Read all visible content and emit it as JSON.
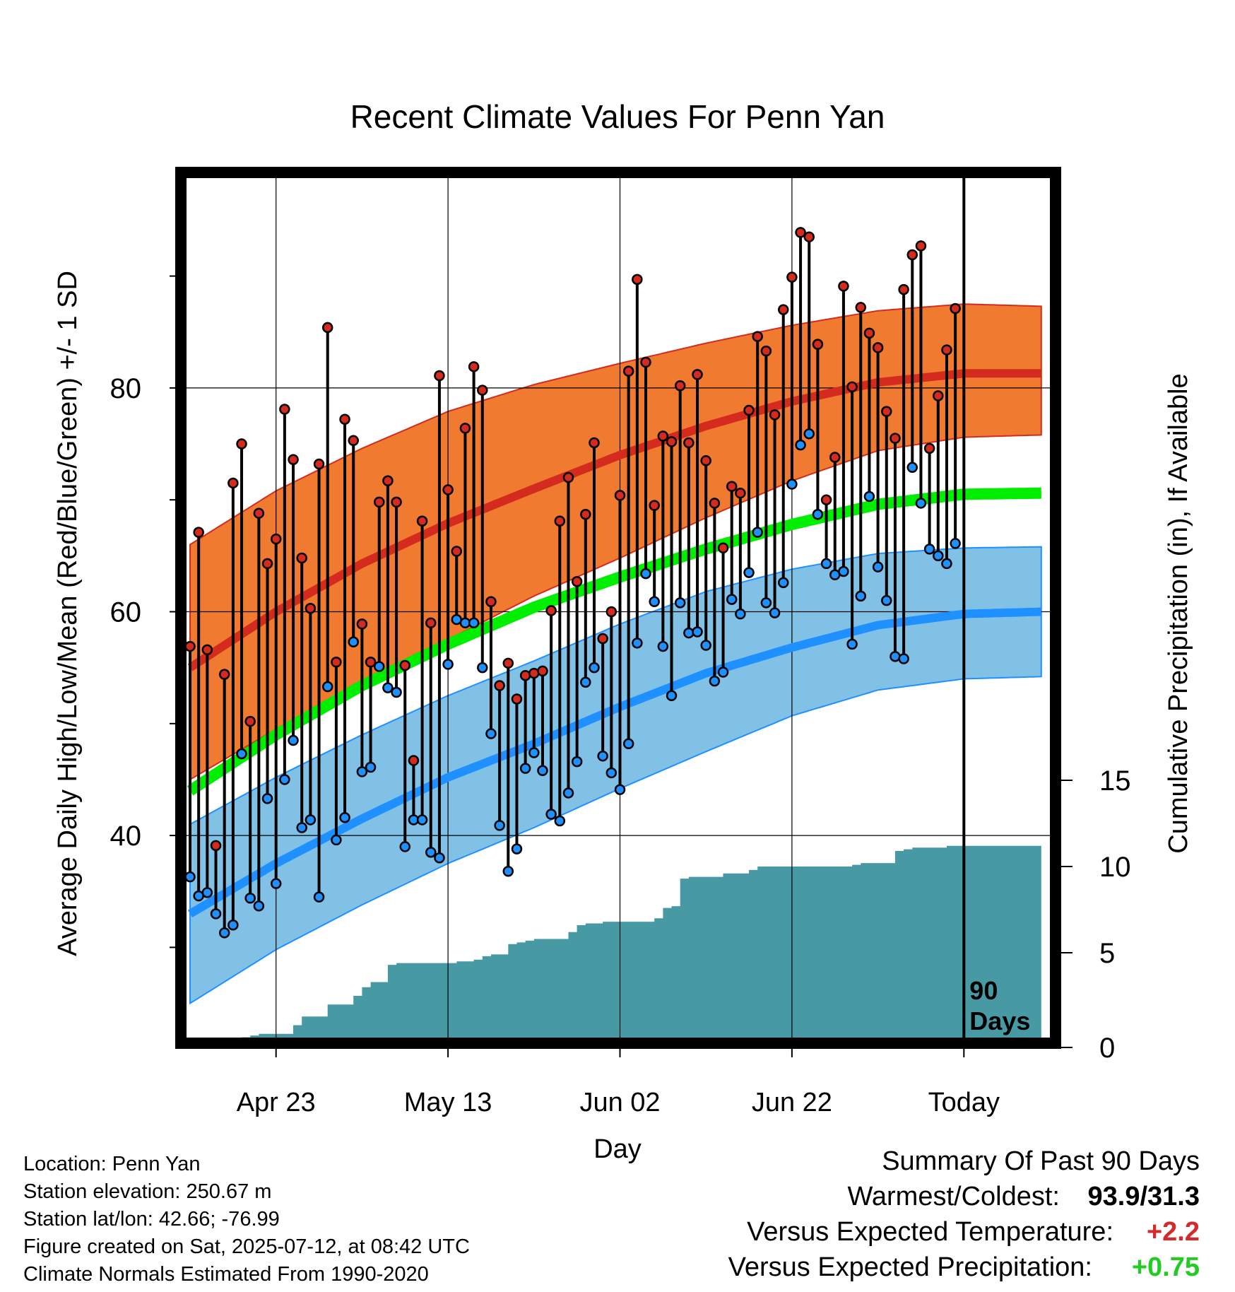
{
  "chart_data": {
    "type": "line",
    "title": "Recent Climate Values For Penn Yan",
    "xlabel": "Day",
    "ylabel_left": "Average Daily High/Low/Mean (Red/Blue/Green) +/- 1 SD",
    "ylabel_right": "Cumulative Precipitation (in), If Available",
    "x_unit": "day index (0 = 2025-04-13 ... 89 = 2025-07-11)",
    "xlim": [
      0,
      99
    ],
    "ylim": [
      22,
      100
    ],
    "y2lim": [
      0,
      60
    ],
    "grid": true,
    "x_ticks": [
      {
        "x": 10,
        "label": "Apr 23"
      },
      {
        "x": 30,
        "label": "May 13"
      },
      {
        "x": 50,
        "label": "Jun 02"
      },
      {
        "x": 70,
        "label": "Jun 22"
      },
      {
        "x": 90,
        "label": "Today"
      }
    ],
    "y_ticks": [
      {
        "value": 40,
        "label": "40"
      },
      {
        "value": 60,
        "label": "60"
      },
      {
        "value": 80,
        "label": "80"
      }
    ],
    "y_minor_ticks": [
      30,
      50,
      70,
      90
    ],
    "y2_ticks": [
      {
        "value": 0,
        "label": "0"
      },
      {
        "value": 5,
        "label": "5"
      },
      {
        "value": 10,
        "label": "10"
      },
      {
        "value": 15,
        "label": "15"
      }
    ],
    "today_marker": {
      "x": 90,
      "label_line1": "90",
      "label_line2": "Days"
    },
    "normals_x": [
      0,
      10,
      20,
      30,
      40,
      50,
      60,
      70,
      80,
      90,
      99
    ],
    "normal_high": [
      55.0,
      60.0,
      64.3,
      67.9,
      71.0,
      74.0,
      76.6,
      78.8,
      80.5,
      81.3,
      81.3
    ],
    "normal_high_sd_upper": [
      66.0,
      70.8,
      74.6,
      77.9,
      80.3,
      82.2,
      84.0,
      85.6,
      86.9,
      87.5,
      87.3
    ],
    "normal_high_sd_lower": [
      45.0,
      49.5,
      53.8,
      57.5,
      61.4,
      64.8,
      68.4,
      71.7,
      74.4,
      75.6,
      75.8
    ],
    "normal_mean": [
      44.0,
      49.0,
      53.4,
      57.1,
      60.4,
      63.1,
      65.6,
      67.8,
      69.6,
      70.5,
      70.6
    ],
    "normal_low": [
      33.0,
      37.5,
      41.5,
      45.2,
      48.2,
      51.5,
      54.5,
      56.8,
      58.8,
      59.8,
      60.0
    ],
    "normal_low_sd_upper": [
      41.0,
      45.2,
      49.0,
      52.5,
      55.6,
      58.9,
      61.8,
      63.8,
      65.2,
      65.7,
      65.8
    ],
    "normal_low_sd_lower": [
      25.0,
      29.8,
      33.8,
      37.5,
      40.7,
      44.2,
      47.5,
      50.7,
      53.0,
      54.0,
      54.2
    ],
    "series": [
      {
        "name": "Daily High",
        "values": [
          56.9,
          67.1,
          56.6,
          39.1,
          54.4,
          71.5,
          75.0,
          50.2,
          68.8,
          64.3,
          66.5,
          78.1,
          73.6,
          64.8,
          60.3,
          73.2,
          85.4,
          55.5,
          77.2,
          75.3,
          58.9,
          55.5,
          69.8,
          71.7,
          69.8,
          55.2,
          46.7,
          68.1,
          59.0,
          81.1,
          70.9,
          65.4,
          76.4,
          81.9,
          79.8,
          60.9,
          53.4,
          55.4,
          52.2,
          54.3,
          54.5,
          54.7,
          60.1,
          68.1,
          72.0,
          62.7,
          68.7,
          75.1,
          57.6,
          60.0,
          70.4,
          81.5,
          89.7,
          82.3,
          69.5,
          75.7,
          75.2,
          80.2,
          75.1,
          81.2,
          73.5,
          69.7,
          65.7,
          71.2,
          70.6,
          78.0,
          84.6,
          83.3,
          77.6,
          87.0,
          89.9,
          93.9,
          93.5,
          83.9,
          70.0,
          73.8,
          89.1,
          80.1,
          87.2,
          84.9,
          83.6,
          77.9,
          75.5,
          88.8,
          91.9,
          92.7,
          74.6,
          79.3,
          83.4,
          87.1
        ]
      },
      {
        "name": "Daily Low",
        "values": [
          36.3,
          34.6,
          34.9,
          33.0,
          31.3,
          32.0,
          47.3,
          34.4,
          33.7,
          43.3,
          35.7,
          45.0,
          48.5,
          40.7,
          41.4,
          34.5,
          53.3,
          39.6,
          41.6,
          57.3,
          45.7,
          46.1,
          55.1,
          53.2,
          52.8,
          39.0,
          41.4,
          41.4,
          38.5,
          38.0,
          55.3,
          59.3,
          59.0,
          59.0,
          55.0,
          49.1,
          40.9,
          36.8,
          38.8,
          46.0,
          47.4,
          45.8,
          41.9,
          41.3,
          43.8,
          46.6,
          53.7,
          55.0,
          47.1,
          45.6,
          44.1,
          48.2,
          57.2,
          63.4,
          60.9,
          56.9,
          52.5,
          60.8,
          58.1,
          58.2,
          57.0,
          53.8,
          54.6,
          61.1,
          59.8,
          63.5,
          67.1,
          60.8,
          59.9,
          62.6,
          71.4,
          74.9,
          75.9,
          68.7,
          64.3,
          63.3,
          63.6,
          57.1,
          61.4,
          70.3,
          64.0,
          61.0,
          56.0,
          55.8,
          72.9,
          69.7,
          65.6,
          65.0,
          64.3,
          66.1
        ]
      },
      {
        "name": "Cumulative Precipitation",
        "x": [
          0,
          5,
          6,
          7,
          8,
          9,
          10,
          11,
          12,
          13,
          14,
          15,
          16,
          17,
          18,
          19,
          20,
          21,
          22,
          23,
          24,
          28,
          30,
          31,
          32,
          33,
          34,
          35,
          36,
          37,
          38,
          39,
          40,
          42,
          44,
          45,
          46,
          47,
          48,
          49,
          50,
          51,
          52,
          53,
          54,
          55,
          56,
          57,
          58,
          62,
          64,
          65,
          66,
          67,
          68,
          69,
          70,
          71,
          72,
          73,
          74,
          75,
          76,
          77,
          78,
          79,
          80,
          81,
          82,
          83,
          84,
          85,
          86,
          87,
          88,
          89
        ],
        "values": [
          0,
          0,
          0.1,
          0.2,
          0.3,
          0.3,
          0.3,
          0.3,
          0.8,
          1.3,
          1.3,
          1.3,
          2.0,
          2.0,
          2.0,
          2.5,
          3.0,
          3.3,
          3.3,
          4.3,
          4.4,
          4.4,
          4.4,
          4.5,
          4.5,
          4.6,
          4.8,
          4.9,
          4.9,
          5.5,
          5.6,
          5.7,
          5.8,
          5.8,
          6.2,
          6.6,
          6.7,
          6.7,
          6.8,
          6.8,
          6.8,
          6.8,
          6.8,
          6.8,
          7.0,
          7.6,
          7.7,
          9.3,
          9.4,
          9.6,
          9.6,
          9.8,
          10.0,
          10.0,
          10.0,
          10.0,
          10.0,
          10.0,
          10.0,
          10.0,
          10.0,
          10.0,
          10.0,
          10.1,
          10.2,
          10.2,
          10.2,
          10.2,
          10.9,
          11.0,
          11.1,
          11.1,
          11.1,
          11.1,
          11.2,
          11.2
        ]
      }
    ],
    "colors": {
      "high_band": "#f07a30",
      "high_band_edge": "#d42b1e",
      "normal_high_line": "#d42b1e",
      "mean_line": "#00ee00",
      "low_band": "#82c1e6",
      "low_band_edge": "#1e90ff",
      "normal_low_line": "#1e90ff",
      "precip_fill": "#479aa3",
      "high_marker": "#d42b1e",
      "low_marker": "#1e90ff"
    }
  },
  "info": {
    "location": "Location: Penn Yan",
    "elevation": "Station elevation: 250.67 m",
    "latlon": "Station lat/lon: 42.66; -76.99",
    "created": "Figure created on Sat, 2025-07-12, at 08:42 UTC",
    "normals": "Climate Normals Estimated From 1990-2020"
  },
  "summary": {
    "heading": "Summary Of Past 90 Days",
    "warmest_coldest_label": "Warmest/Coldest:",
    "warmest_coldest_value": "93.9/31.3",
    "temp_label": "Versus Expected Temperature:",
    "temp_value": "+2.2",
    "precip_label": "Versus Expected Precipitation:",
    "precip_value": "+0.75"
  }
}
